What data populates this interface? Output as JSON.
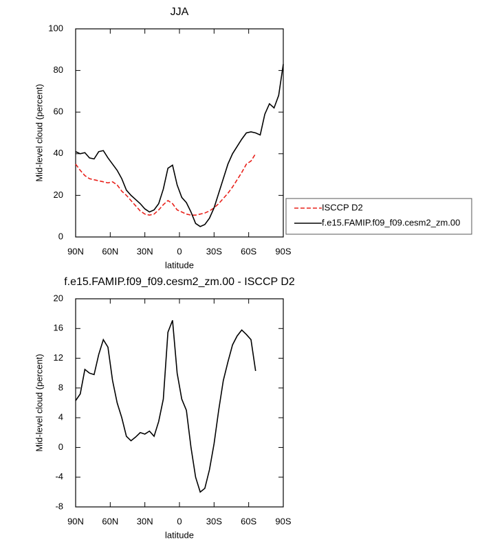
{
  "chart_data": [
    {
      "type": "line",
      "title": "JJA",
      "xlabel": "latitude",
      "ylabel": "Mid-level cloud (percent)",
      "x": [
        90,
        86,
        82,
        78,
        74,
        70,
        66,
        62,
        58,
        54,
        50,
        46,
        42,
        38,
        34,
        30,
        26,
        22,
        18,
        14,
        10,
        6,
        2,
        -2,
        -6,
        -10,
        -14,
        -18,
        -22,
        -26,
        -30,
        -34,
        -38,
        -42,
        -46,
        -50,
        -54,
        -58,
        -62,
        -66,
        -70,
        -74,
        -78,
        -82,
        -86,
        -90
      ],
      "xlim": [
        90,
        -90
      ],
      "xticks": [
        {
          "value": 90,
          "label": "90N"
        },
        {
          "value": 60,
          "label": "60N"
        },
        {
          "value": 30,
          "label": "30N"
        },
        0,
        {
          "value": -30,
          "label": "30S"
        },
        {
          "value": -60,
          "label": "60S"
        },
        {
          "value": -90,
          "label": "90S"
        }
      ],
      "ylim": [
        0,
        100
      ],
      "yticks": [
        0,
        20,
        40,
        60,
        80,
        100
      ],
      "legend": "outside-right",
      "series": [
        {
          "name": "ISCCP D2",
          "color": "#e8201a",
          "dash": true,
          "values": [
            35,
            32,
            29.5,
            28,
            27.5,
            27,
            26.5,
            26,
            26.5,
            25,
            22,
            20,
            17.5,
            15,
            12.5,
            11,
            10.5,
            11,
            13,
            15.5,
            17.5,
            16,
            13,
            12,
            11,
            10.5,
            10.5,
            11,
            11.5,
            12.5,
            14,
            16,
            18.5,
            21,
            24,
            27.5,
            31,
            35,
            36.5,
            40,
            null,
            null,
            null,
            null,
            null,
            null
          ]
        },
        {
          "name": "f.e15.FAMIP.f09_f09.cesm2_zm.00",
          "color": "#000000",
          "dash": false,
          "values": [
            41,
            40,
            40.5,
            38,
            37.5,
            41,
            41.5,
            38,
            35,
            32,
            28,
            22.5,
            20,
            18,
            16,
            13.5,
            12,
            13,
            16,
            23,
            33,
            34.5,
            25,
            19,
            16.5,
            12,
            6.5,
            5,
            6,
            9,
            14,
            21,
            28,
            35,
            40,
            43.5,
            47,
            50,
            50.5,
            50,
            49,
            59,
            64,
            62,
            68,
            83
          ]
        }
      ]
    },
    {
      "type": "line",
      "title": "f.e15.FAMIP.f09_f09.cesm2_zm.00 - ISCCP D2",
      "xlabel": "latitude",
      "ylabel": "Mid-level cloud (percent)",
      "x": [
        90,
        86,
        82,
        78,
        74,
        70,
        66,
        62,
        58,
        54,
        50,
        46,
        42,
        38,
        34,
        30,
        26,
        22,
        18,
        14,
        10,
        6,
        2,
        -2,
        -6,
        -10,
        -14,
        -18,
        -22,
        -26,
        -30,
        -34,
        -38,
        -42,
        -46,
        -50,
        -54,
        -58,
        -62,
        -66,
        -70,
        -74,
        -78,
        -82,
        -86,
        -90
      ],
      "xlim": [
        90,
        -90
      ],
      "xticks": [
        {
          "value": 90,
          "label": "90N"
        },
        {
          "value": 60,
          "label": "60N"
        },
        {
          "value": 30,
          "label": "30N"
        },
        0,
        {
          "value": -30,
          "label": "30S"
        },
        {
          "value": -60,
          "label": "60S"
        },
        {
          "value": -90,
          "label": "90S"
        }
      ],
      "ylim": [
        -8,
        20
      ],
      "yticks": [
        -8,
        -4,
        0,
        4,
        8,
        12,
        16,
        20
      ],
      "series": [
        {
          "color": "#000000",
          "dash": false,
          "values": [
            6.3,
            7.2,
            10.5,
            10,
            9.8,
            12.5,
            14.5,
            13.5,
            9,
            6,
            4,
            1.5,
            0.9,
            1.4,
            2,
            1.8,
            2.2,
            1.5,
            3.5,
            6.5,
            15.5,
            17.1,
            10,
            6.5,
            5,
            0,
            -4,
            -6,
            -5.5,
            -3,
            0.5,
            5,
            9,
            11.5,
            13.8,
            15,
            15.8,
            15.2,
            14.5,
            10.3,
            null,
            null,
            null,
            null,
            null,
            null
          ]
        }
      ]
    }
  ]
}
